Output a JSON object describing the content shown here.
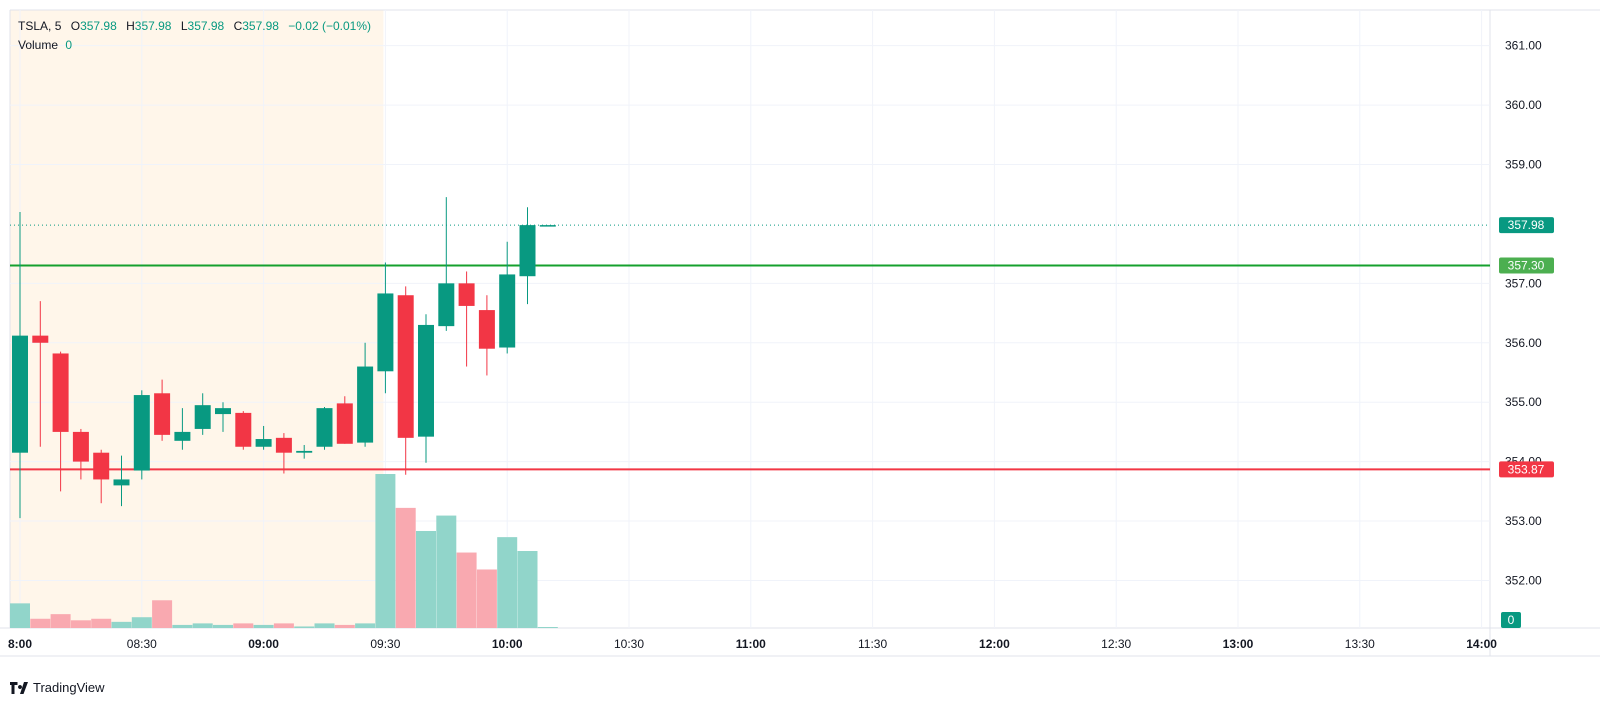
{
  "header": {
    "symbol": "TSLA",
    "interval": "5",
    "open_label": "O",
    "open": "357.98",
    "high_label": "H",
    "high": "357.98",
    "low_label": "L",
    "low": "357.98",
    "close_label": "C",
    "close": "357.98",
    "change": "−0.02 (−0.01%)",
    "volume_label": "Volume",
    "volume": "0"
  },
  "brand": {
    "name": "TradingView"
  },
  "colors": {
    "up": "#089981",
    "down": "#f23645",
    "up_volume": "#91d5ca",
    "down_volume": "#f9a9b0",
    "premarket_bg": "#fff6ea",
    "grid": "#f0f3fa",
    "resistance_line": "#15a02e",
    "support_line": "#f23645"
  },
  "chart_data": {
    "type": "candlestick",
    "interval_minutes": 5,
    "ylim": [
      351.2,
      361.6
    ],
    "y_ticks": [
      "361.00",
      "360.00",
      "359.00",
      "357.00",
      "356.00",
      "355.00",
      "354.00",
      "353.00",
      "352.00"
    ],
    "x_ticks": [
      {
        "label": "8:00",
        "time": "08:00",
        "bold": true
      },
      {
        "label": "08:30",
        "time": "08:30",
        "bold": false
      },
      {
        "label": "09:00",
        "time": "09:00",
        "bold": true
      },
      {
        "label": "09:30",
        "time": "09:30",
        "bold": false
      },
      {
        "label": "10:00",
        "time": "10:00",
        "bold": true
      },
      {
        "label": "10:30",
        "time": "10:30",
        "bold": false
      },
      {
        "label": "11:00",
        "time": "11:00",
        "bold": true
      },
      {
        "label": "11:30",
        "time": "11:30",
        "bold": false
      },
      {
        "label": "12:00",
        "time": "12:00",
        "bold": true
      },
      {
        "label": "12:30",
        "time": "12:30",
        "bold": false
      },
      {
        "label": "13:00",
        "time": "13:00",
        "bold": true
      },
      {
        "label": "13:30",
        "time": "13:30",
        "bold": false
      },
      {
        "label": "14:00",
        "time": "14:00",
        "bold": true
      }
    ],
    "premarket_end": "09:30",
    "candles": [
      {
        "t": "08:00",
        "o": 354.15,
        "h": 358.2,
        "l": 353.05,
        "c": 356.12,
        "v": 0.16
      },
      {
        "t": "08:05",
        "o": 356.12,
        "h": 356.7,
        "l": 354.25,
        "c": 356.0,
        "v": 0.06
      },
      {
        "t": "08:10",
        "o": 355.82,
        "h": 355.85,
        "l": 353.5,
        "c": 354.5,
        "v": 0.09
      },
      {
        "t": "08:15",
        "o": 354.5,
        "h": 354.55,
        "l": 353.7,
        "c": 354.0,
        "v": 0.05
      },
      {
        "t": "08:20",
        "o": 354.15,
        "h": 354.2,
        "l": 353.3,
        "c": 353.7,
        "v": 0.06
      },
      {
        "t": "08:25",
        "o": 353.6,
        "h": 354.1,
        "l": 353.25,
        "c": 353.7,
        "v": 0.04
      },
      {
        "t": "08:30",
        "o": 353.85,
        "h": 355.2,
        "l": 353.7,
        "c": 355.12,
        "v": 0.07
      },
      {
        "t": "08:35",
        "o": 355.15,
        "h": 355.38,
        "l": 354.35,
        "c": 354.45,
        "v": 0.18
      },
      {
        "t": "08:40",
        "o": 354.35,
        "h": 354.9,
        "l": 354.2,
        "c": 354.5,
        "v": 0.02
      },
      {
        "t": "08:45",
        "o": 354.55,
        "h": 355.15,
        "l": 354.45,
        "c": 354.95,
        "v": 0.03
      },
      {
        "t": "08:50",
        "o": 354.8,
        "h": 355.0,
        "l": 354.5,
        "c": 354.9,
        "v": 0.02
      },
      {
        "t": "08:55",
        "o": 354.82,
        "h": 354.85,
        "l": 354.2,
        "c": 354.25,
        "v": 0.03
      },
      {
        "t": "09:00",
        "o": 354.25,
        "h": 354.6,
        "l": 354.2,
        "c": 354.38,
        "v": 0.02
      },
      {
        "t": "09:05",
        "o": 354.4,
        "h": 354.48,
        "l": 353.8,
        "c": 354.15,
        "v": 0.03
      },
      {
        "t": "09:10",
        "o": 354.15,
        "h": 354.28,
        "l": 354.05,
        "c": 354.18,
        "v": 0.01
      },
      {
        "t": "09:15",
        "o": 354.25,
        "h": 354.92,
        "l": 354.2,
        "c": 354.9,
        "v": 0.03
      },
      {
        "t": "09:20",
        "o": 354.98,
        "h": 355.1,
        "l": 354.3,
        "c": 354.3,
        "v": 0.02
      },
      {
        "t": "09:25",
        "o": 354.32,
        "h": 356.0,
        "l": 354.25,
        "c": 355.6,
        "v": 0.03
      },
      {
        "t": "09:30",
        "o": 355.52,
        "h": 357.35,
        "l": 355.15,
        "c": 356.83,
        "v": 1.0
      },
      {
        "t": "09:35",
        "o": 356.8,
        "h": 356.95,
        "l": 353.78,
        "c": 354.4,
        "v": 0.78
      },
      {
        "t": "09:40",
        "o": 354.42,
        "h": 356.48,
        "l": 353.98,
        "c": 356.3,
        "v": 0.63
      },
      {
        "t": "09:45",
        "o": 356.28,
        "h": 358.45,
        "l": 356.2,
        "c": 357.0,
        "v": 0.73
      },
      {
        "t": "09:50",
        "o": 357.0,
        "h": 357.2,
        "l": 355.6,
        "c": 356.62,
        "v": 0.49
      },
      {
        "t": "09:55",
        "o": 356.55,
        "h": 356.8,
        "l": 355.45,
        "c": 355.9,
        "v": 0.38
      },
      {
        "t": "10:00",
        "o": 355.92,
        "h": 357.7,
        "l": 355.82,
        "c": 357.15,
        "v": 0.59
      },
      {
        "t": "10:05",
        "o": 357.12,
        "h": 358.28,
        "l": 356.65,
        "c": 357.98,
        "v": 0.5
      },
      {
        "t": "10:10",
        "o": 357.98,
        "h": 357.98,
        "l": 357.98,
        "c": 357.98,
        "v": 0.0
      }
    ],
    "last_price_label": "357.98",
    "horizontal_lines": [
      {
        "price": 357.3,
        "label": "357.30",
        "kind": "resistance"
      },
      {
        "price": 353.87,
        "label": "353.87",
        "kind": "support"
      }
    ],
    "volume_badge": "0"
  }
}
